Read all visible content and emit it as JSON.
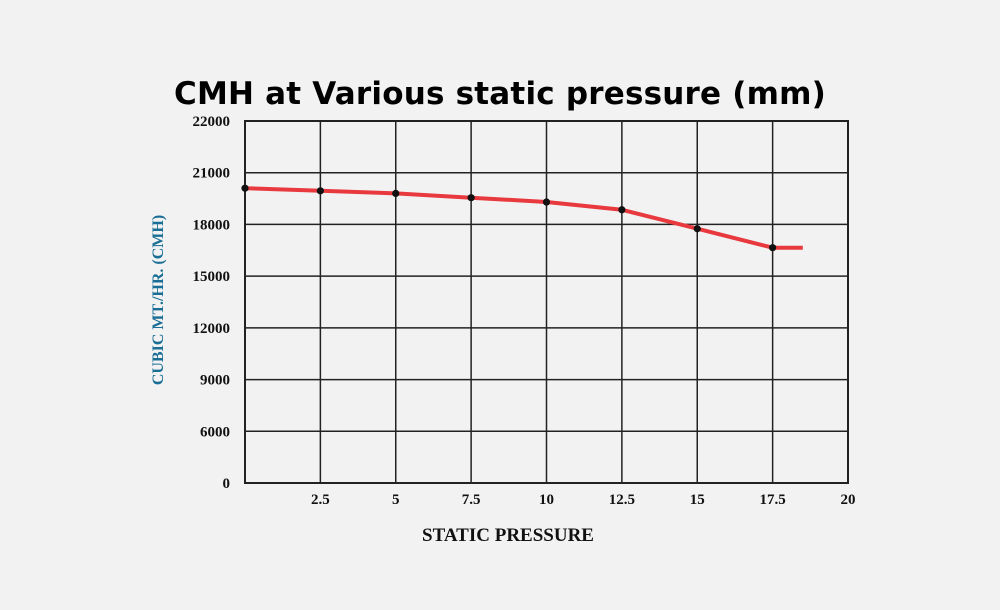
{
  "chart_data": {
    "type": "line",
    "title": "CMH at Various static pressure (mm)",
    "xlabel": "STATIC PRESSURE",
    "ylabel": "CUBIC MT./HR. (CMH)",
    "x_ticks": [
      "2.5",
      "5",
      "7.5",
      "10",
      "12.5",
      "15",
      "17.5",
      "20"
    ],
    "y_ticks": [
      "0",
      "6000",
      "9000",
      "12000",
      "15000",
      "18000",
      "21000",
      "22000"
    ],
    "grid": true,
    "series": [
      {
        "points": [
          {
            "x": 0,
            "y": 20100
          },
          {
            "x": 2.5,
            "y": 19950
          },
          {
            "x": 5,
            "y": 19800
          },
          {
            "x": 7.5,
            "y": 19550
          },
          {
            "x": 10,
            "y": 19300
          },
          {
            "x": 12.5,
            "y": 18850
          },
          {
            "x": 15,
            "y": 17750
          },
          {
            "x": 17.5,
            "y": 16650
          }
        ],
        "line_end": {
          "x": 18.5,
          "y": 16650
        },
        "color": "#e8393f",
        "marker_color": "#111111"
      }
    ]
  }
}
